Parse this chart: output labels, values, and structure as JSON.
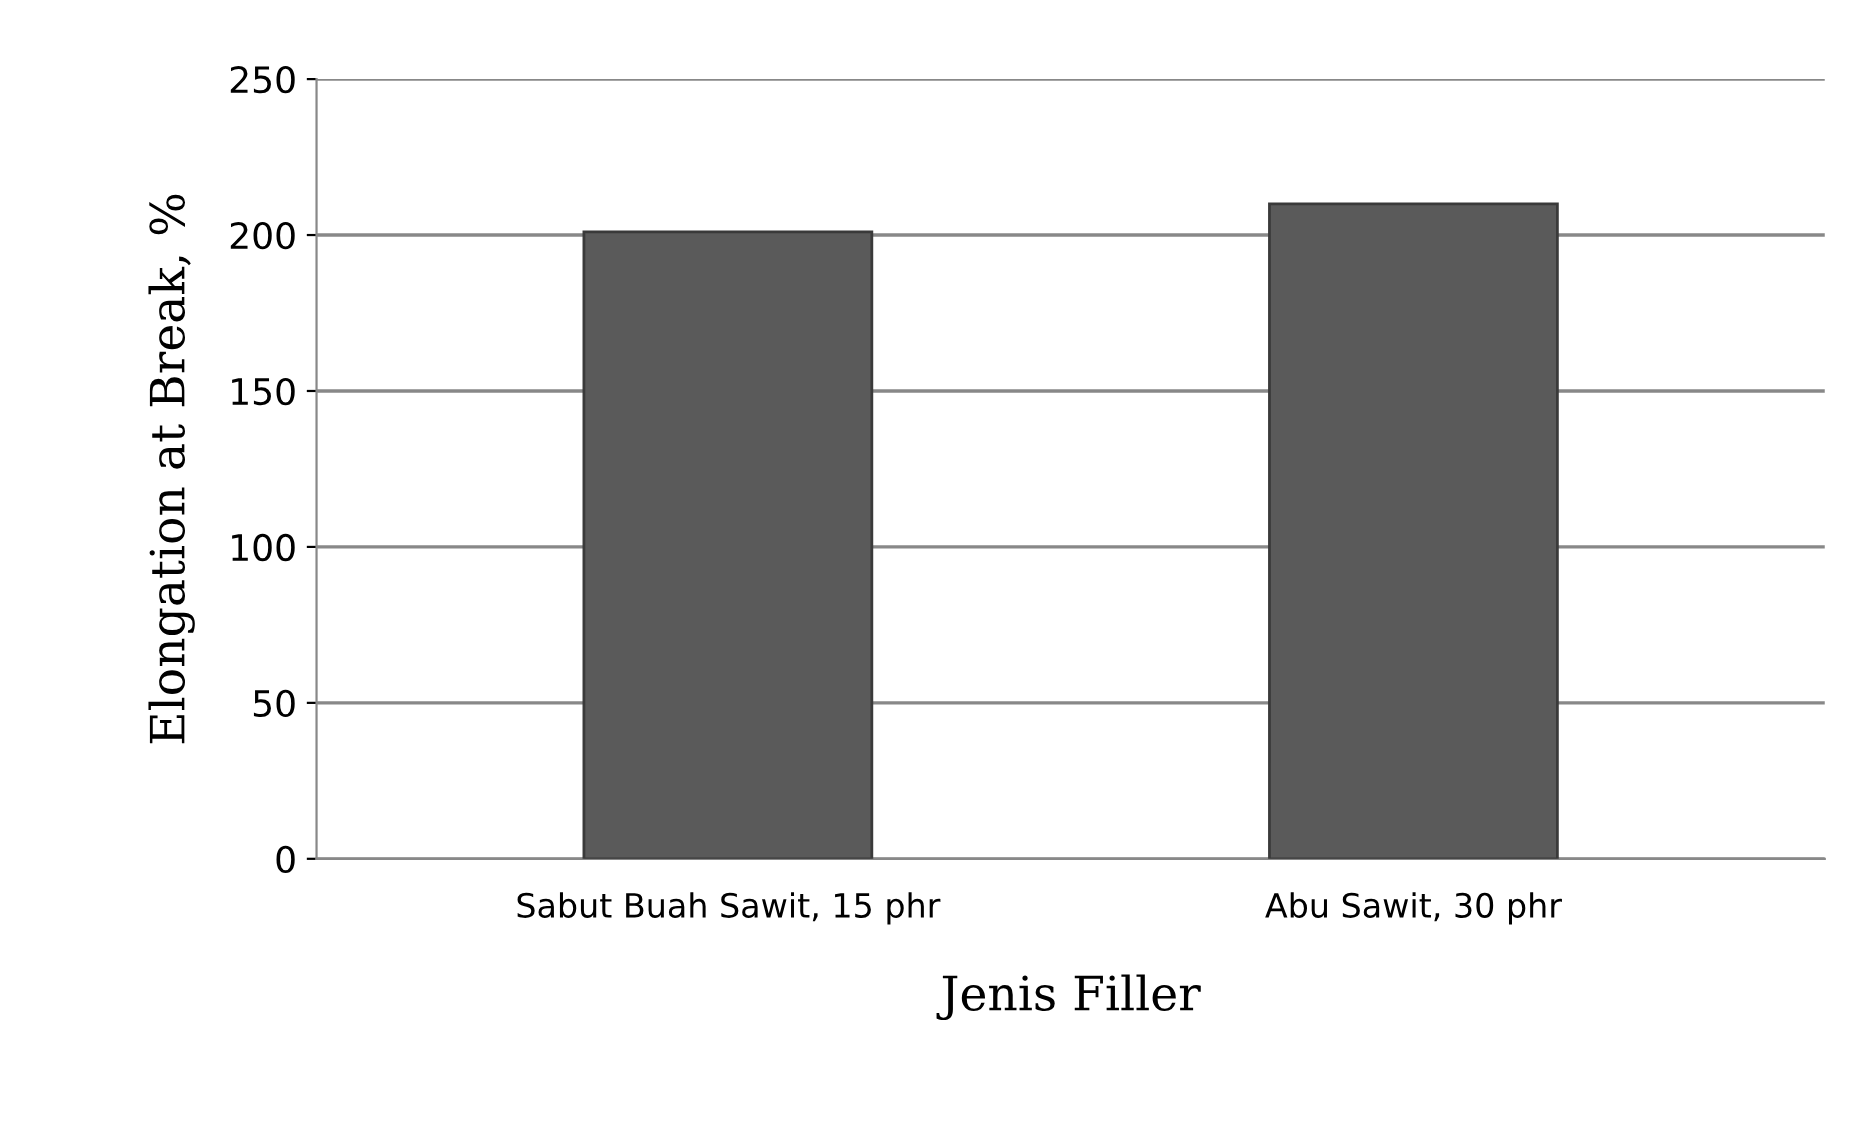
{
  "chart_data": {
    "type": "bar",
    "xlabel": "Jenis Filler",
    "ylabel": "Elongation at Break, %",
    "categories": [
      "Sabut Buah Sawit, 15 phr",
      "Abu Sawit, 30 phr"
    ],
    "values": [
      201,
      210
    ],
    "color": "#5a5a5a",
    "ylim": [
      0,
      250
    ],
    "yticks": [
      0,
      50,
      100,
      150,
      200,
      250
    ],
    "grid": "y"
  }
}
